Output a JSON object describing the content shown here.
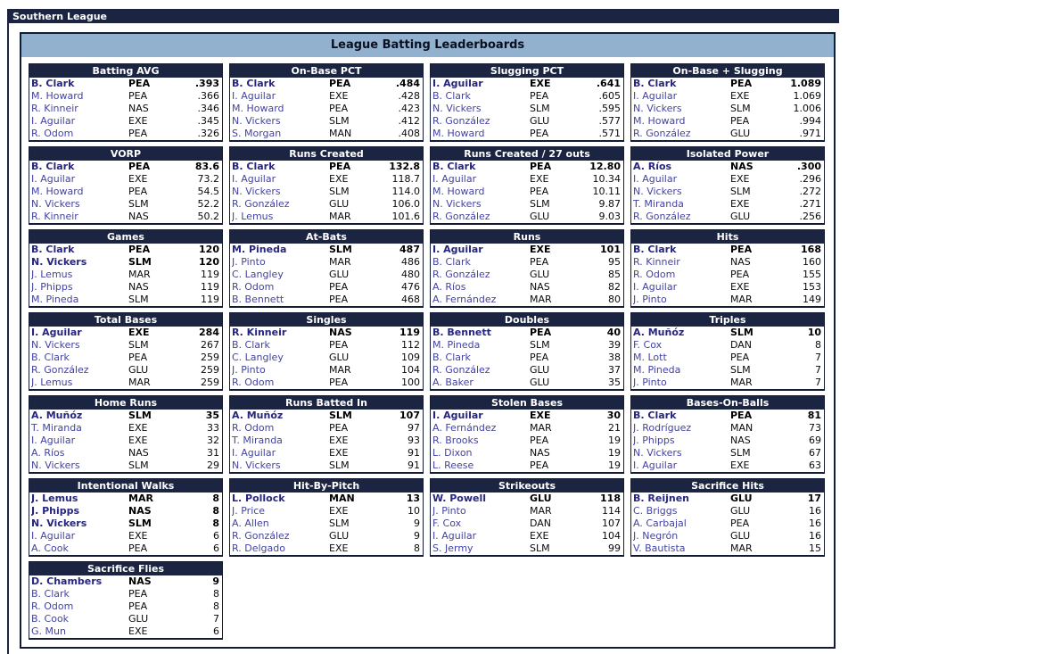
{
  "window": {
    "title": "Southern League"
  },
  "panel": {
    "title": "League Batting Leaderboards"
  },
  "colors": {
    "navy": "#1b2441",
    "header_blue": "#91b1cf",
    "player_link": "#4343a2",
    "leader_link": "#26267e"
  },
  "boards": [
    {
      "title": "Batting AVG",
      "rows": [
        {
          "player": "B. Clark",
          "team": "PEA",
          "value": ".393",
          "bold": true
        },
        {
          "player": "M. Howard",
          "team": "PEA",
          "value": ".366",
          "bold": false
        },
        {
          "player": "R. Kinneir",
          "team": "NAS",
          "value": ".346",
          "bold": false
        },
        {
          "player": "I. Aguilar",
          "team": "EXE",
          "value": ".345",
          "bold": false
        },
        {
          "player": "R. Odom",
          "team": "PEA",
          "value": ".326",
          "bold": false
        }
      ]
    },
    {
      "title": "On-Base PCT",
      "rows": [
        {
          "player": "B. Clark",
          "team": "PEA",
          "value": ".484",
          "bold": true
        },
        {
          "player": "I. Aguilar",
          "team": "EXE",
          "value": ".428",
          "bold": false
        },
        {
          "player": "M. Howard",
          "team": "PEA",
          "value": ".423",
          "bold": false
        },
        {
          "player": "N. Vickers",
          "team": "SLM",
          "value": ".412",
          "bold": false
        },
        {
          "player": "S. Morgan",
          "team": "MAN",
          "value": ".408",
          "bold": false
        }
      ]
    },
    {
      "title": "Slugging PCT",
      "rows": [
        {
          "player": "I. Aguilar",
          "team": "EXE",
          "value": ".641",
          "bold": true
        },
        {
          "player": "B. Clark",
          "team": "PEA",
          "value": ".605",
          "bold": false
        },
        {
          "player": "N. Vickers",
          "team": "SLM",
          "value": ".595",
          "bold": false
        },
        {
          "player": "R. González",
          "team": "GLU",
          "value": ".577",
          "bold": false
        },
        {
          "player": "M. Howard",
          "team": "PEA",
          "value": ".571",
          "bold": false
        }
      ]
    },
    {
      "title": "On-Base + Slugging",
      "rows": [
        {
          "player": "B. Clark",
          "team": "PEA",
          "value": "1.089",
          "bold": true
        },
        {
          "player": "I. Aguilar",
          "team": "EXE",
          "value": "1.069",
          "bold": false
        },
        {
          "player": "N. Vickers",
          "team": "SLM",
          "value": "1.006",
          "bold": false
        },
        {
          "player": "M. Howard",
          "team": "PEA",
          "value": ".994",
          "bold": false
        },
        {
          "player": "R. González",
          "team": "GLU",
          "value": ".971",
          "bold": false
        }
      ]
    },
    {
      "title": "VORP",
      "rows": [
        {
          "player": "B. Clark",
          "team": "PEA",
          "value": "83.6",
          "bold": true
        },
        {
          "player": "I. Aguilar",
          "team": "EXE",
          "value": "73.2",
          "bold": false
        },
        {
          "player": "M. Howard",
          "team": "PEA",
          "value": "54.5",
          "bold": false
        },
        {
          "player": "N. Vickers",
          "team": "SLM",
          "value": "52.2",
          "bold": false
        },
        {
          "player": "R. Kinneir",
          "team": "NAS",
          "value": "50.2",
          "bold": false
        }
      ]
    },
    {
      "title": "Runs Created",
      "rows": [
        {
          "player": "B. Clark",
          "team": "PEA",
          "value": "132.8",
          "bold": true
        },
        {
          "player": "I. Aguilar",
          "team": "EXE",
          "value": "118.7",
          "bold": false
        },
        {
          "player": "N. Vickers",
          "team": "SLM",
          "value": "114.0",
          "bold": false
        },
        {
          "player": "R. González",
          "team": "GLU",
          "value": "106.0",
          "bold": false
        },
        {
          "player": "J. Lemus",
          "team": "MAR",
          "value": "101.6",
          "bold": false
        }
      ]
    },
    {
      "title": "Runs Created / 27 outs",
      "rows": [
        {
          "player": "B. Clark",
          "team": "PEA",
          "value": "12.80",
          "bold": true
        },
        {
          "player": "I. Aguilar",
          "team": "EXE",
          "value": "10.34",
          "bold": false
        },
        {
          "player": "M. Howard",
          "team": "PEA",
          "value": "10.11",
          "bold": false
        },
        {
          "player": "N. Vickers",
          "team": "SLM",
          "value": "9.87",
          "bold": false
        },
        {
          "player": "R. González",
          "team": "GLU",
          "value": "9.03",
          "bold": false
        }
      ]
    },
    {
      "title": "Isolated Power",
      "rows": [
        {
          "player": "A. Ríos",
          "team": "NAS",
          "value": ".300",
          "bold": true
        },
        {
          "player": "I. Aguilar",
          "team": "EXE",
          "value": ".296",
          "bold": false
        },
        {
          "player": "N. Vickers",
          "team": "SLM",
          "value": ".272",
          "bold": false
        },
        {
          "player": "T. Miranda",
          "team": "EXE",
          "value": ".271",
          "bold": false
        },
        {
          "player": "R. González",
          "team": "GLU",
          "value": ".256",
          "bold": false
        }
      ]
    },
    {
      "title": "Games",
      "rows": [
        {
          "player": "B. Clark",
          "team": "PEA",
          "value": "120",
          "bold": true
        },
        {
          "player": "N. Vickers",
          "team": "SLM",
          "value": "120",
          "bold": true
        },
        {
          "player": "J. Lemus",
          "team": "MAR",
          "value": "119",
          "bold": false
        },
        {
          "player": "J. Phipps",
          "team": "NAS",
          "value": "119",
          "bold": false
        },
        {
          "player": "M. Pineda",
          "team": "SLM",
          "value": "119",
          "bold": false
        }
      ]
    },
    {
      "title": "At-Bats",
      "rows": [
        {
          "player": "M. Pineda",
          "team": "SLM",
          "value": "487",
          "bold": true
        },
        {
          "player": "J. Pinto",
          "team": "MAR",
          "value": "486",
          "bold": false
        },
        {
          "player": "C. Langley",
          "team": "GLU",
          "value": "480",
          "bold": false
        },
        {
          "player": "R. Odom",
          "team": "PEA",
          "value": "476",
          "bold": false
        },
        {
          "player": "B. Bennett",
          "team": "PEA",
          "value": "468",
          "bold": false
        }
      ]
    },
    {
      "title": "Runs",
      "rows": [
        {
          "player": "I. Aguilar",
          "team": "EXE",
          "value": "101",
          "bold": true
        },
        {
          "player": "B. Clark",
          "team": "PEA",
          "value": "95",
          "bold": false
        },
        {
          "player": "R. González",
          "team": "GLU",
          "value": "85",
          "bold": false
        },
        {
          "player": "A. Ríos",
          "team": "NAS",
          "value": "82",
          "bold": false
        },
        {
          "player": "A. Fernández",
          "team": "MAR",
          "value": "80",
          "bold": false
        }
      ]
    },
    {
      "title": "Hits",
      "rows": [
        {
          "player": "B. Clark",
          "team": "PEA",
          "value": "168",
          "bold": true
        },
        {
          "player": "R. Kinneir",
          "team": "NAS",
          "value": "160",
          "bold": false
        },
        {
          "player": "R. Odom",
          "team": "PEA",
          "value": "155",
          "bold": false
        },
        {
          "player": "I. Aguilar",
          "team": "EXE",
          "value": "153",
          "bold": false
        },
        {
          "player": "J. Pinto",
          "team": "MAR",
          "value": "149",
          "bold": false
        }
      ]
    },
    {
      "title": "Total Bases",
      "rows": [
        {
          "player": "I. Aguilar",
          "team": "EXE",
          "value": "284",
          "bold": true
        },
        {
          "player": "N. Vickers",
          "team": "SLM",
          "value": "267",
          "bold": false
        },
        {
          "player": "B. Clark",
          "team": "PEA",
          "value": "259",
          "bold": false
        },
        {
          "player": "R. González",
          "team": "GLU",
          "value": "259",
          "bold": false
        },
        {
          "player": "J. Lemus",
          "team": "MAR",
          "value": "259",
          "bold": false
        }
      ]
    },
    {
      "title": "Singles",
      "rows": [
        {
          "player": "R. Kinneir",
          "team": "NAS",
          "value": "119",
          "bold": true
        },
        {
          "player": "B. Clark",
          "team": "PEA",
          "value": "112",
          "bold": false
        },
        {
          "player": "C. Langley",
          "team": "GLU",
          "value": "109",
          "bold": false
        },
        {
          "player": "J. Pinto",
          "team": "MAR",
          "value": "104",
          "bold": false
        },
        {
          "player": "R. Odom",
          "team": "PEA",
          "value": "100",
          "bold": false
        }
      ]
    },
    {
      "title": "Doubles",
      "rows": [
        {
          "player": "B. Bennett",
          "team": "PEA",
          "value": "40",
          "bold": true
        },
        {
          "player": "M. Pineda",
          "team": "SLM",
          "value": "39",
          "bold": false
        },
        {
          "player": "B. Clark",
          "team": "PEA",
          "value": "38",
          "bold": false
        },
        {
          "player": "R. González",
          "team": "GLU",
          "value": "37",
          "bold": false
        },
        {
          "player": "A. Baker",
          "team": "GLU",
          "value": "35",
          "bold": false
        }
      ]
    },
    {
      "title": "Triples",
      "rows": [
        {
          "player": "A. Muñóz",
          "team": "SLM",
          "value": "10",
          "bold": true
        },
        {
          "player": "F. Cox",
          "team": "DAN",
          "value": "8",
          "bold": false
        },
        {
          "player": "M. Lott",
          "team": "PEA",
          "value": "7",
          "bold": false
        },
        {
          "player": "M. Pineda",
          "team": "SLM",
          "value": "7",
          "bold": false
        },
        {
          "player": "J. Pinto",
          "team": "MAR",
          "value": "7",
          "bold": false
        }
      ]
    },
    {
      "title": "Home Runs",
      "rows": [
        {
          "player": "A. Muñóz",
          "team": "SLM",
          "value": "35",
          "bold": true
        },
        {
          "player": "T. Miranda",
          "team": "EXE",
          "value": "33",
          "bold": false
        },
        {
          "player": "I. Aguilar",
          "team": "EXE",
          "value": "32",
          "bold": false
        },
        {
          "player": "A. Ríos",
          "team": "NAS",
          "value": "31",
          "bold": false
        },
        {
          "player": "N. Vickers",
          "team": "SLM",
          "value": "29",
          "bold": false
        }
      ]
    },
    {
      "title": "Runs Batted In",
      "rows": [
        {
          "player": "A. Muñóz",
          "team": "SLM",
          "value": "107",
          "bold": true
        },
        {
          "player": "R. Odom",
          "team": "PEA",
          "value": "97",
          "bold": false
        },
        {
          "player": "T. Miranda",
          "team": "EXE",
          "value": "93",
          "bold": false
        },
        {
          "player": "I. Aguilar",
          "team": "EXE",
          "value": "91",
          "bold": false
        },
        {
          "player": "N. Vickers",
          "team": "SLM",
          "value": "91",
          "bold": false
        }
      ]
    },
    {
      "title": "Stolen Bases",
      "rows": [
        {
          "player": "I. Aguilar",
          "team": "EXE",
          "value": "30",
          "bold": true
        },
        {
          "player": "A. Fernández",
          "team": "MAR",
          "value": "21",
          "bold": false
        },
        {
          "player": "R. Brooks",
          "team": "PEA",
          "value": "19",
          "bold": false
        },
        {
          "player": "L. Dixon",
          "team": "NAS",
          "value": "19",
          "bold": false
        },
        {
          "player": "L. Reese",
          "team": "PEA",
          "value": "19",
          "bold": false
        }
      ]
    },
    {
      "title": "Bases-On-Balls",
      "rows": [
        {
          "player": "B. Clark",
          "team": "PEA",
          "value": "81",
          "bold": true
        },
        {
          "player": "J. Rodríguez",
          "team": "MAN",
          "value": "73",
          "bold": false
        },
        {
          "player": "J. Phipps",
          "team": "NAS",
          "value": "69",
          "bold": false
        },
        {
          "player": "N. Vickers",
          "team": "SLM",
          "value": "67",
          "bold": false
        },
        {
          "player": "I. Aguilar",
          "team": "EXE",
          "value": "63",
          "bold": false
        }
      ]
    },
    {
      "title": "Intentional Walks",
      "rows": [
        {
          "player": "J. Lemus",
          "team": "MAR",
          "value": "8",
          "bold": true
        },
        {
          "player": "J. Phipps",
          "team": "NAS",
          "value": "8",
          "bold": true
        },
        {
          "player": "N. Vickers",
          "team": "SLM",
          "value": "8",
          "bold": true
        },
        {
          "player": "I. Aguilar",
          "team": "EXE",
          "value": "6",
          "bold": false
        },
        {
          "player": "A. Cook",
          "team": "PEA",
          "value": "6",
          "bold": false
        }
      ]
    },
    {
      "title": "Hit-By-Pitch",
      "rows": [
        {
          "player": "L. Pollock",
          "team": "MAN",
          "value": "13",
          "bold": true
        },
        {
          "player": "J. Price",
          "team": "EXE",
          "value": "10",
          "bold": false
        },
        {
          "player": "A. Allen",
          "team": "SLM",
          "value": "9",
          "bold": false
        },
        {
          "player": "R. González",
          "team": "GLU",
          "value": "9",
          "bold": false
        },
        {
          "player": "R. Delgado",
          "team": "EXE",
          "value": "8",
          "bold": false
        }
      ]
    },
    {
      "title": "Strikeouts",
      "rows": [
        {
          "player": "W. Powell",
          "team": "GLU",
          "value": "118",
          "bold": true
        },
        {
          "player": "J. Pinto",
          "team": "MAR",
          "value": "114",
          "bold": false
        },
        {
          "player": "F. Cox",
          "team": "DAN",
          "value": "107",
          "bold": false
        },
        {
          "player": "I. Aguilar",
          "team": "EXE",
          "value": "104",
          "bold": false
        },
        {
          "player": "S. Jermy",
          "team": "SLM",
          "value": "99",
          "bold": false
        }
      ]
    },
    {
      "title": "Sacrifice Hits",
      "rows": [
        {
          "player": "B. Reijnen",
          "team": "GLU",
          "value": "17",
          "bold": true
        },
        {
          "player": "C. Briggs",
          "team": "GLU",
          "value": "16",
          "bold": false
        },
        {
          "player": "A. Carbajal",
          "team": "PEA",
          "value": "16",
          "bold": false
        },
        {
          "player": "J. Negrón",
          "team": "GLU",
          "value": "16",
          "bold": false
        },
        {
          "player": "V. Bautista",
          "team": "MAR",
          "value": "15",
          "bold": false
        }
      ]
    },
    {
      "title": "Sacrifice Flies",
      "rows": [
        {
          "player": "D. Chambers",
          "team": "NAS",
          "value": "9",
          "bold": true
        },
        {
          "player": "B. Clark",
          "team": "PEA",
          "value": "8",
          "bold": false
        },
        {
          "player": "R. Odom",
          "team": "PEA",
          "value": "8",
          "bold": false
        },
        {
          "player": "B. Cook",
          "team": "GLU",
          "value": "7",
          "bold": false
        },
        {
          "player": "G. Mun",
          "team": "EXE",
          "value": "6",
          "bold": false
        }
      ]
    }
  ]
}
